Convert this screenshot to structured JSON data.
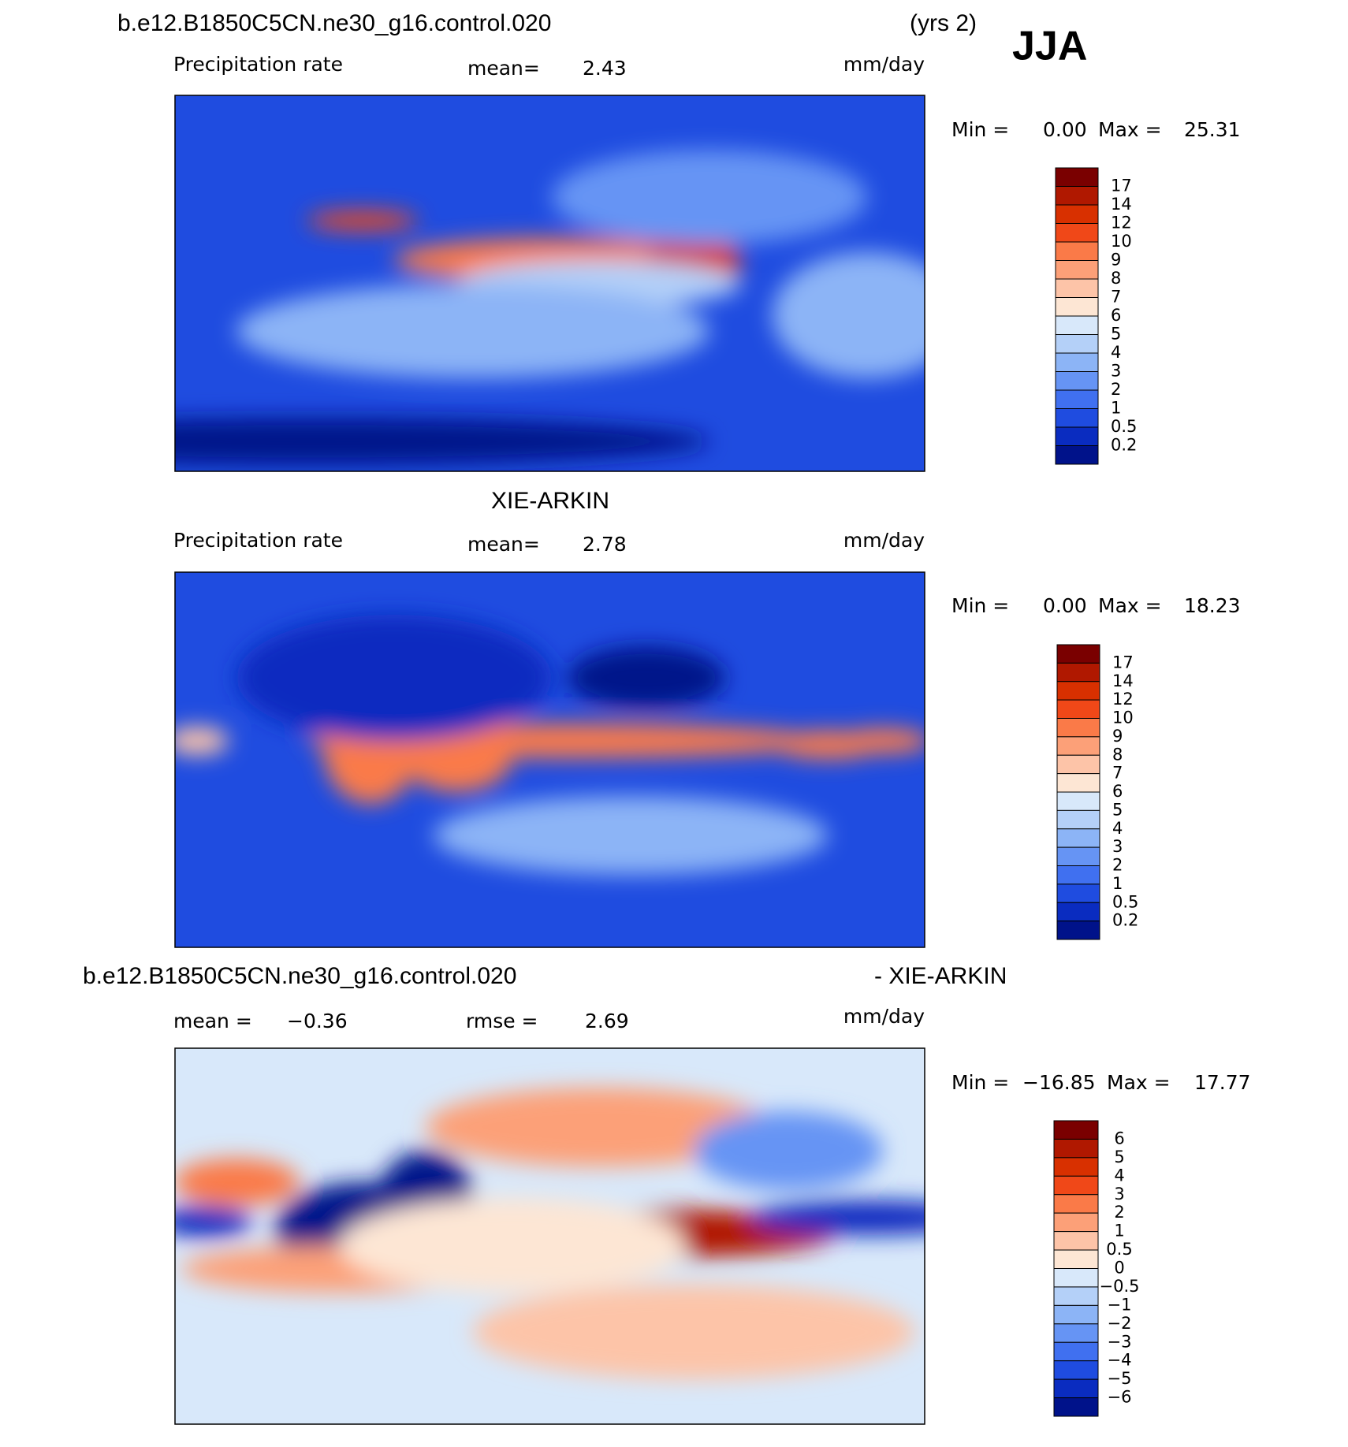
{
  "header": {
    "case": "b.e12.B1850C5CN.ne30_g16.control.020",
    "years": "(yrs 2)",
    "season": "JJA"
  },
  "panels": [
    {
      "variable": "Precipitation rate",
      "mean_label": "mean=",
      "mean": "2.43",
      "units": "mm/day",
      "min_label": "Min =",
      "min": "0.00",
      "max_label": "Max =",
      "max": "25.31",
      "levels": [
        "17",
        "14",
        "12",
        "10",
        "9",
        "8",
        "7",
        "6",
        "5",
        "4",
        "3",
        "2",
        "1",
        "0.5",
        "0.2"
      ],
      "colors": [
        "#7a0000",
        "#b01800",
        "#d83000",
        "#f04818",
        "#fa7a48",
        "#fca078",
        "#fdc4a8",
        "#fde6d4",
        "#d8e8fa",
        "#b4d0f8",
        "#8cb4f6",
        "#6694f4",
        "#4070f0",
        "#1f4ce0",
        "#0a2cc0",
        "#00128a"
      ]
    },
    {
      "title": "XIE-ARKIN",
      "variable": "Precipitation rate",
      "mean_label": "mean=",
      "mean": "2.78",
      "units": "mm/day",
      "min_label": "Min =",
      "min": "0.00",
      "max_label": "Max =",
      "max": "18.23",
      "levels": [
        "17",
        "14",
        "12",
        "10",
        "9",
        "8",
        "7",
        "6",
        "5",
        "4",
        "3",
        "2",
        "1",
        "0.5",
        "0.2"
      ],
      "colors": [
        "#7a0000",
        "#b01800",
        "#d83000",
        "#f04818",
        "#fa7a48",
        "#fca078",
        "#fdc4a8",
        "#fde6d4",
        "#d8e8fa",
        "#b4d0f8",
        "#8cb4f6",
        "#6694f4",
        "#4070f0",
        "#1f4ce0",
        "#0a2cc0",
        "#00128a"
      ]
    },
    {
      "title": "b.e12.B1850C5CN.ne30_g16.control.020",
      "title_right": "- XIE-ARKIN",
      "mean_label": "mean =",
      "mean": "−0.36",
      "rmse_label": "rmse =",
      "rmse": "2.69",
      "units": "mm/day",
      "min_label": "Min =",
      "min": "−16.85",
      "max_label": "Max =",
      "max": "17.77",
      "levels": [
        "6",
        "5",
        "4",
        "3",
        "2",
        "1",
        "0.5",
        "0",
        "−0.5",
        "−1",
        "−2",
        "−3",
        "−4",
        "−5",
        "−6"
      ],
      "colors": [
        "#7a0000",
        "#b01800",
        "#d83000",
        "#f04818",
        "#fa7a48",
        "#fca078",
        "#fdc4a8",
        "#fde6d4",
        "#d8e8fa",
        "#b4d0f8",
        "#8cb4f6",
        "#6694f4",
        "#4070f0",
        "#1f4ce0",
        "#0a2cc0",
        "#00128a"
      ]
    }
  ]
}
